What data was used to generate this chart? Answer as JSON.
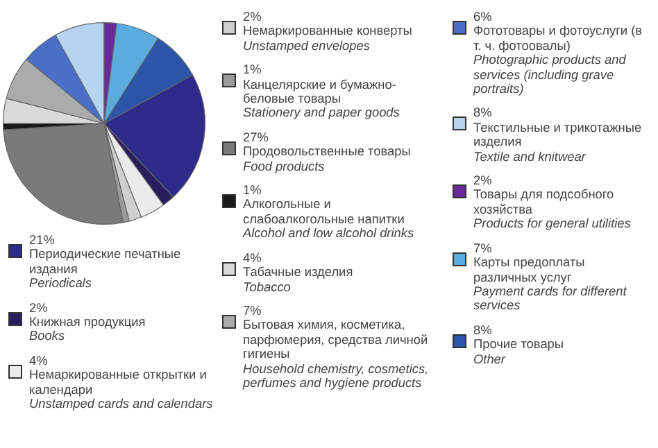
{
  "chart_data": {
    "type": "pie",
    "legend": "right",
    "categories": [
      "Периодические печатные издания\nPeriodicals",
      "Книжная продукция\nBooks",
      "Немаркированные открытки и календари\nUnstamped cards and calendars",
      "Немаркированные конверты\nUnstamped envelopes",
      "Канцелярские и бумажно-беловые товары\nStationery and paper goods",
      "Продовольственные товары\nFood products",
      "Алкогольные и слабоалкогольные напитки\nAlcohol and low alcohol drinks",
      "Табачные изделия\nTobacco",
      "Бытовая химия, косметика, парфюмерия, средства личной гигиены\nHousehold chemistry, cosmetics, perfumes and hygiene products",
      "Фототовары и фотоуслуги (в т. ч. фотоовалы)\nPhotographic products and services (including grave portraits)",
      "Текстильные и трикотажные изделия\nTextile and knitwear",
      "Товары для подсобного хозяйства\nProducts for general utilities",
      "Карты предоплаты различных услуг\nPayment cards for different services",
      "Прочие товары\nOther"
    ],
    "values": [
      21,
      2,
      4,
      2,
      1,
      27,
      1,
      4,
      7,
      6,
      8,
      2,
      7,
      8
    ],
    "value_labels": [
      "21%",
      "2%",
      "4%",
      "2%",
      "1%",
      "27%",
      "1%",
      "4%",
      "7%",
      "6%",
      "8%",
      "2%",
      "7%",
      "8%"
    ],
    "colors": [
      "#2e2a8a",
      "#2a1f5e",
      "#ebebeb",
      "#cfcfcf",
      "#9a9a9a",
      "#7a7a7a",
      "#1a1a1a",
      "#dadada",
      "#ababab",
      "#4a6fc8",
      "#b4d4f0",
      "#6a2a9a",
      "#5aacdf",
      "#2a55a8"
    ]
  }
}
